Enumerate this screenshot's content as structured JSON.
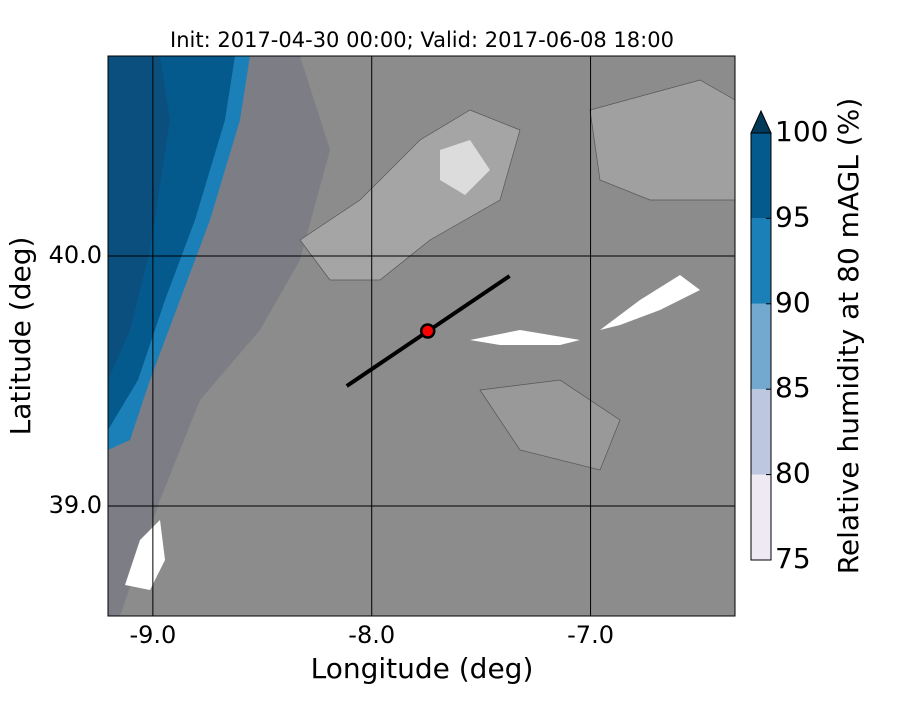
{
  "title": "Init: 2017-04-30 00:00; Valid: 2017-06-08 18:00",
  "x_label": "Longitude (deg)",
  "y_label": "Latitude (deg)",
  "xlim": [
    -9.205,
    -6.34
  ],
  "ylim": [
    38.56,
    40.8
  ],
  "xticks": [
    {
      "value": -9,
      "label": "-9.0"
    },
    {
      "value": -8,
      "label": "-8.0"
    },
    {
      "value": -7,
      "label": "-7.0"
    }
  ],
  "yticks": [
    {
      "value": 39,
      "label": "39.0"
    },
    {
      "value": 40,
      "label": "40.0"
    }
  ],
  "grid": true,
  "colorbar": {
    "label": "Relative humidity at 80 mAGL (%)",
    "levels": [
      75,
      80,
      85,
      90,
      95,
      100
    ],
    "colors": [
      "#efe9f3",
      "#bdc7e0",
      "#73a9cf",
      "#1c80b8",
      "#045a8d"
    ],
    "extend_color": "#023858"
  },
  "point": {
    "lon": -7.744,
    "lat": 39.7,
    "color": "#ff0000"
  },
  "section_line": {
    "lon": [
      -8.114,
      -7.37
    ],
    "lat": [
      39.48,
      39.92
    ],
    "color": "#000000"
  }
}
